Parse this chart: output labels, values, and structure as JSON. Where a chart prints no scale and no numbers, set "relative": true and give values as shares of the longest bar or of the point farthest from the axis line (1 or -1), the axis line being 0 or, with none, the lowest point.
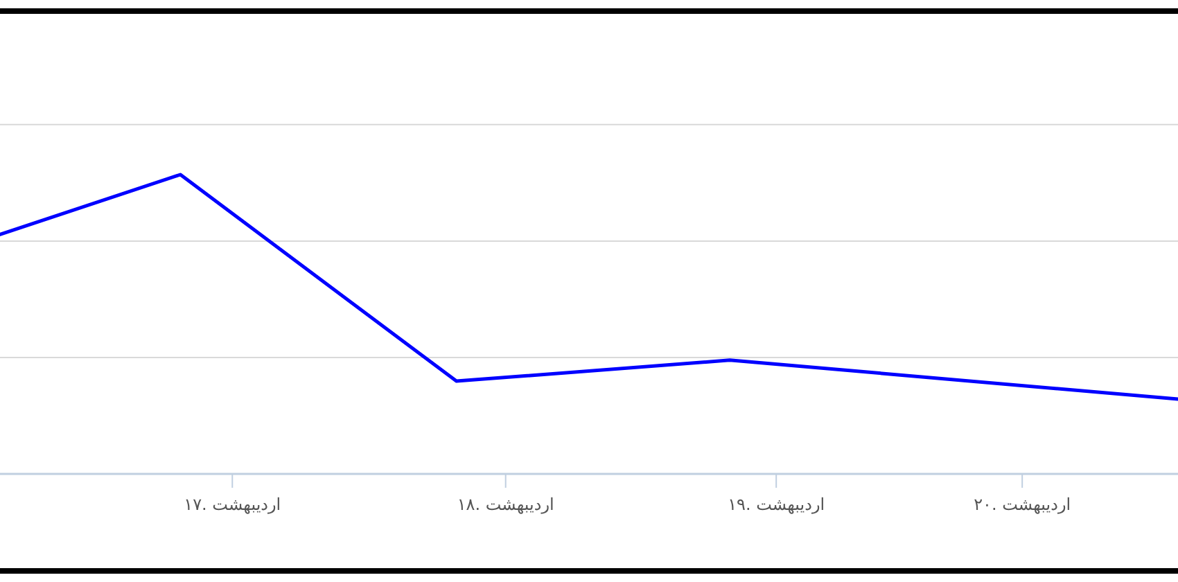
{
  "chart_data": {
    "type": "line",
    "relative": true,
    "marker": "none",
    "line_style": "solid",
    "ref_lines": [
      {
        "axis": "y",
        "value": 0.389,
        "color": "#d9d9d9"
      },
      {
        "axis": "y",
        "value": 0.778,
        "color": "#d9d9d9"
      },
      {
        "axis": "y",
        "value": 1.167,
        "color": "#d9d9d9"
      }
    ],
    "x": [
      16.15,
      16.81,
      17.82,
      18.82,
      20.46
    ],
    "xlim": [
      16.15,
      20.46
    ],
    "xticks": [
      {
        "value": 17,
        "label": "۱۷. اردیبهشت"
      },
      {
        "value": 18,
        "label": "۱۸. اردیبهشت"
      },
      {
        "value": 18.99,
        "label": "۱۹. اردیبهشت"
      },
      {
        "value": 19.89,
        "label": "۲۰. اردیبهشت"
      }
    ],
    "series": [
      {
        "color": "#0000ff",
        "values": [
          0.8,
          1,
          0.31,
          0.38,
          0.25
        ]
      }
    ]
  }
}
